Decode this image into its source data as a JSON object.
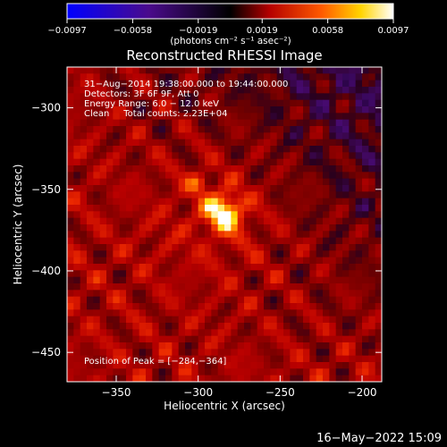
{
  "chart_data": {
    "type": "heatmap",
    "title": "Reconstructed RHESSI Image",
    "xlabel": "Heliocentric X (arcsec)",
    "ylabel": "Heliocentric Y (arcsec)",
    "xlim": [
      -380,
      -188
    ],
    "ylim": [
      -468,
      -275
    ],
    "x_ticks": [
      -350,
      -300,
      -250,
      -200
    ],
    "y_ticks": [
      -300,
      -350,
      -400,
      -450
    ],
    "x_tick_labels": [
      "−350",
      "−300",
      "−250",
      "−200"
    ],
    "y_tick_labels": [
      "−300",
      "−350",
      "−400",
      "−450"
    ],
    "colorbar": {
      "range": [
        -0.0097,
        0.0097
      ],
      "ticks": [
        -0.0097,
        -0.0058,
        -0.0019,
        0.0019,
        0.0058,
        0.0097
      ],
      "tick_labels": [
        "−0.0097",
        "−0.0058",
        "−0.0019",
        "0.0019",
        "0.0058",
        "0.0097"
      ],
      "unit_label": "(photons cm⁻² s⁻¹ asec⁻²)"
    },
    "annotations": [
      "31−Aug−2014 19:38:00.000 to 19:44:00.000",
      "Detectors: 3F 6F 9F, Att 0",
      "Energy Range: 6.0 − 12.0 keV",
      "Clean     Total counts: 2.23E+04"
    ],
    "peak_label": "Position of Peak = [−284,−364]",
    "peak_position": [
      -284,
      -364
    ],
    "secondary_source": [
      -300,
      -346
    ],
    "colors": [
      "#0000ff",
      "#4a0b8c",
      "#000000",
      "#b40000",
      "#ff5a00",
      "#ffd400",
      "#ffffff"
    ]
  },
  "footer": {
    "timestamp": "16−May−2022 15:09"
  }
}
